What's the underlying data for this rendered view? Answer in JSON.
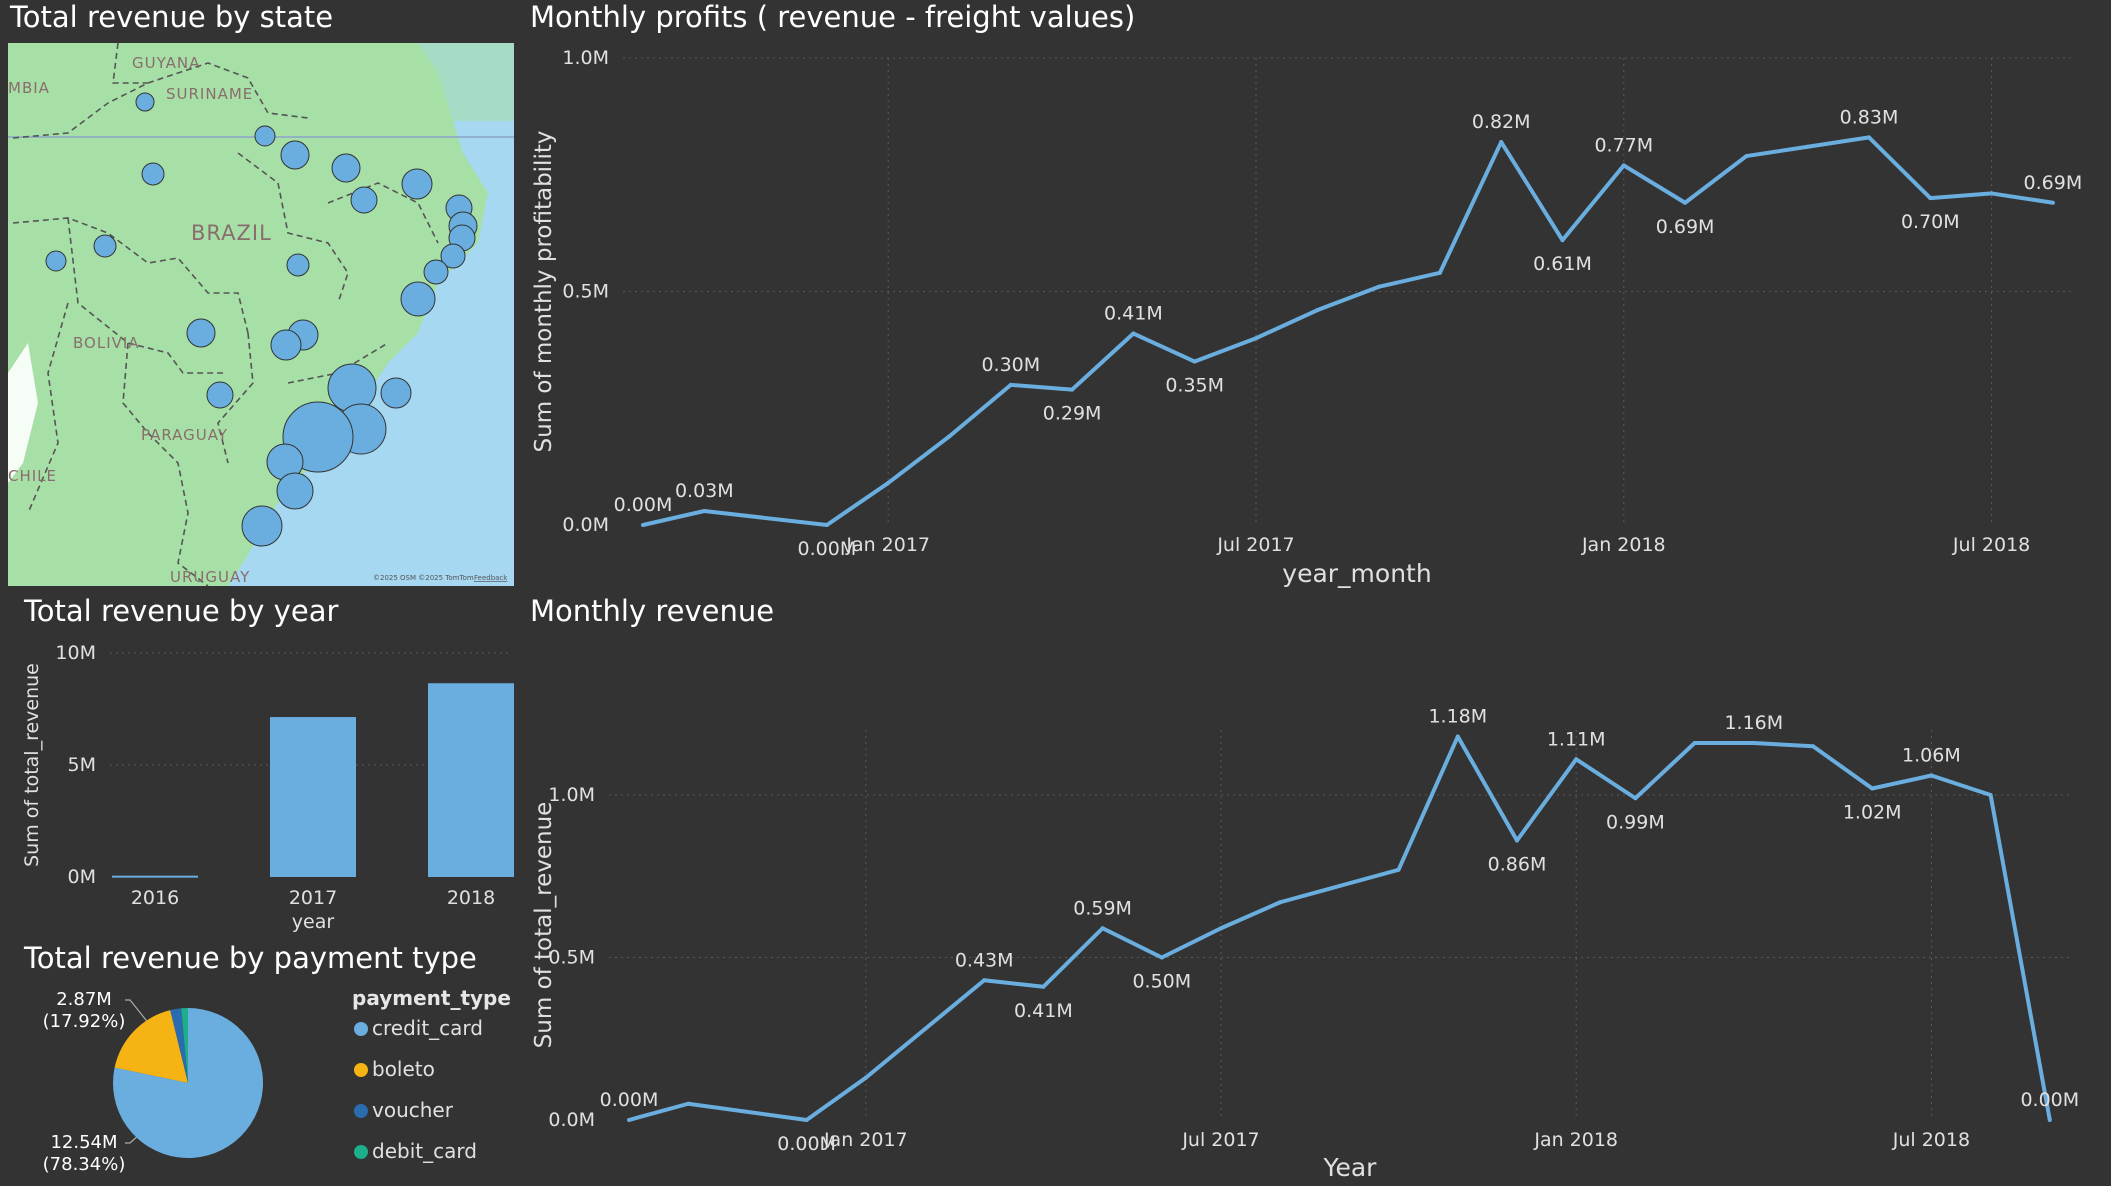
{
  "map": {
    "title": "Total revenue by state",
    "labels": {
      "guyana": "GUYANA",
      "suriname": "SURINAME",
      "colombia": "MBIA",
      "brazil": "BRAZIL",
      "bolivia": "BOLIVIA",
      "paraguay": "PARAGUAY",
      "chile": "CHILE",
      "uruguay": "URUGUAY"
    },
    "copyright": "©2025 OSM  ©2025 TomTom",
    "feedback": "Feedback",
    "colors": {
      "land": "#a6e0a6",
      "water": "#a6d8f2",
      "bubble": "#6aaee0"
    }
  },
  "profits": {
    "title": "Monthly profits ( revenue - freight values)",
    "chart_data": {
      "type": "line",
      "xlabel": "year_month",
      "ylabel": "Sum of monthly profitability",
      "y_ticks": [
        "0.0M",
        "0.5M",
        "1.0M"
      ],
      "x_ticks": [
        "Jan 2017",
        "Jul 2017",
        "Jan 2018",
        "Jul 2018"
      ],
      "ylim": [
        0,
        1.0
      ],
      "x": [
        "2016-09",
        "2016-10",
        "2016-12",
        "2017-01",
        "2017-02",
        "2017-03",
        "2017-04",
        "2017-05",
        "2017-06",
        "2017-07",
        "2017-08",
        "2017-09",
        "2017-10",
        "2017-11",
        "2017-12",
        "2018-01",
        "2018-02",
        "2018-03",
        "2018-04",
        "2018-05",
        "2018-06",
        "2018-07",
        "2018-08"
      ],
      "values": [
        0.0,
        0.03,
        0.0,
        0.09,
        0.19,
        0.3,
        0.29,
        0.41,
        0.35,
        0.4,
        0.46,
        0.51,
        0.54,
        0.82,
        0.61,
        0.77,
        0.69,
        0.79,
        0.81,
        0.83,
        0.7,
        0.71,
        0.69
      ],
      "data_labels": [
        {
          "i": 0,
          "text": "0.00M"
        },
        {
          "i": 1,
          "text": "0.03M"
        },
        {
          "i": 2,
          "text": "0.00M"
        },
        {
          "i": 5,
          "text": "0.30M"
        },
        {
          "i": 6,
          "text": "0.29M"
        },
        {
          "i": 7,
          "text": "0.41M"
        },
        {
          "i": 8,
          "text": "0.35M"
        },
        {
          "i": 13,
          "text": "0.82M"
        },
        {
          "i": 14,
          "text": "0.61M"
        },
        {
          "i": 15,
          "text": "0.77M"
        },
        {
          "i": 16,
          "text": "0.69M"
        },
        {
          "i": 19,
          "text": "0.83M"
        },
        {
          "i": 20,
          "text": "0.70M"
        },
        {
          "i": 22,
          "text": "0.69M"
        }
      ]
    }
  },
  "year": {
    "title": "Total revenue by year",
    "chart_data": {
      "type": "bar",
      "categories": [
        "2016",
        "2017",
        "2018"
      ],
      "values": [
        0.06,
        7.14,
        8.65
      ],
      "xlabel": "year",
      "ylabel": "Sum of total_revenue",
      "y_ticks": [
        "0M",
        "5M",
        "10M"
      ],
      "ylim": [
        0,
        10
      ]
    }
  },
  "payment": {
    "title": "Total revenue by payment type",
    "legend_title": "payment_type",
    "chart_data": {
      "type": "pie",
      "categories": [
        "credit_card",
        "boleto",
        "voucher",
        "debit_card"
      ],
      "values": [
        12.54,
        2.87,
        0.38,
        0.23
      ],
      "colors": [
        "#6aaee0",
        "#f5b414",
        "#2b6cb0",
        "#1bb08a"
      ]
    },
    "label_a": "2.87M",
    "label_a_pct": "(17.92%)",
    "label_b": "12.54M",
    "label_b_pct": "(78.34%)"
  },
  "revenue": {
    "title": "Monthly revenue",
    "chart_data": {
      "type": "line",
      "xlabel": "Year",
      "ylabel": "Sum of total_revenue",
      "y_ticks": [
        "0.0M",
        "0.5M",
        "1.0M"
      ],
      "x_ticks": [
        "Jan 2017",
        "Jul 2017",
        "Jan 2018",
        "Jul 2018"
      ],
      "ylim": [
        0,
        1.2
      ],
      "x": [
        "2016-09",
        "2016-10",
        "2016-12",
        "2017-01",
        "2017-02",
        "2017-03",
        "2017-04",
        "2017-05",
        "2017-06",
        "2017-07",
        "2017-08",
        "2017-09",
        "2017-10",
        "2017-11",
        "2017-12",
        "2018-01",
        "2018-02",
        "2018-03",
        "2018-04",
        "2018-05",
        "2018-06",
        "2018-07",
        "2018-08",
        "2018-09"
      ],
      "values": [
        0.0,
        0.05,
        0.0,
        0.13,
        0.28,
        0.43,
        0.41,
        0.59,
        0.5,
        0.59,
        0.67,
        0.72,
        0.77,
        1.18,
        0.86,
        1.11,
        0.99,
        1.16,
        1.16,
        1.15,
        1.02,
        1.06,
        1.0,
        0.0
      ],
      "data_labels": [
        {
          "i": 0,
          "text": "0.00M"
        },
        {
          "i": 2,
          "text": "0.00M"
        },
        {
          "i": 5,
          "text": "0.43M"
        },
        {
          "i": 6,
          "text": "0.41M"
        },
        {
          "i": 7,
          "text": "0.59M"
        },
        {
          "i": 8,
          "text": "0.50M"
        },
        {
          "i": 13,
          "text": "1.18M"
        },
        {
          "i": 14,
          "text": "0.86M"
        },
        {
          "i": 15,
          "text": "1.11M"
        },
        {
          "i": 16,
          "text": "0.99M"
        },
        {
          "i": 18,
          "text": "1.16M"
        },
        {
          "i": 20,
          "text": "1.02M"
        },
        {
          "i": 21,
          "text": "1.06M"
        },
        {
          "i": 23,
          "text": "0.00M"
        }
      ]
    }
  },
  "colors": {
    "line": "#6aaee0",
    "bar": "#6aaee0",
    "background": "#333333",
    "grid": "#5a5a5a",
    "text": "#ffffff",
    "tick": "#e0e0e0"
  }
}
